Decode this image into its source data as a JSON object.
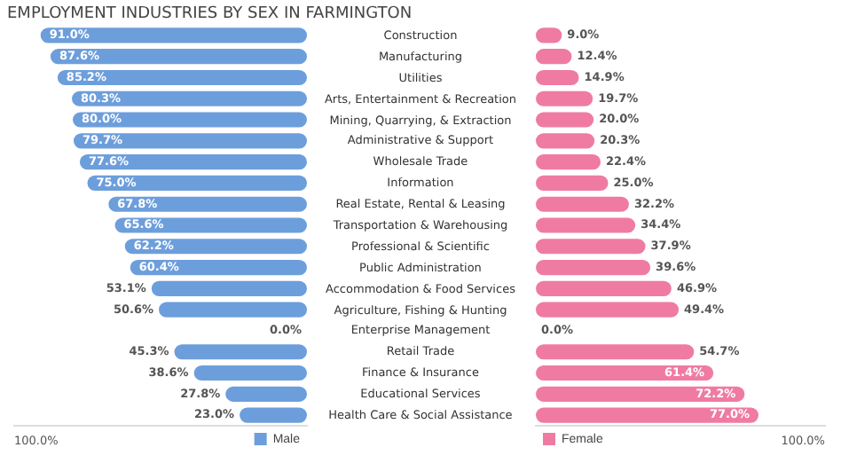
{
  "chart_data": [
    {
      "type": "bar",
      "orientation": "horizontal",
      "title": "EMPLOYMENT INDUSTRIES BY SEX IN FARMINGTON",
      "categories": [
        "Construction",
        "Manufacturing",
        "Utilities",
        "Arts, Entertainment & Recreation",
        "Mining, Quarrying, & Extraction",
        "Administrative & Support",
        "Wholesale Trade",
        "Information",
        "Real Estate, Rental & Leasing",
        "Transportation & Warehousing",
        "Professional & Scientific",
        "Public Administration",
        "Accommodation & Food Services",
        "Agriculture, Fishing & Hunting",
        "Enterprise Management",
        "Retail Trade",
        "Finance & Insurance",
        "Educational Services",
        "Health Care & Social Assistance"
      ],
      "series": [
        {
          "name": "Male",
          "color": "#6d9edc",
          "values": [
            91.0,
            87.6,
            85.2,
            80.3,
            80.0,
            79.7,
            77.6,
            75.0,
            67.8,
            65.6,
            62.2,
            60.4,
            53.1,
            50.6,
            0.0,
            45.3,
            38.6,
            27.8,
            23.0
          ],
          "value_labels": [
            "91.0%",
            "87.6%",
            "85.2%",
            "80.3%",
            "80.0%",
            "79.7%",
            "77.6%",
            "75.0%",
            "67.8%",
            "65.6%",
            "62.2%",
            "60.4%",
            "53.1%",
            "50.6%",
            "0.0%",
            "45.3%",
            "38.6%",
            "27.8%",
            "23.0%"
          ]
        }
      ],
      "xlim": [
        100,
        0
      ],
      "annotations": [
        "100.0%"
      ],
      "legend": "bottom right"
    },
    {
      "type": "bar",
      "orientation": "horizontal",
      "categories": [
        null,
        null,
        null,
        null,
        null,
        null,
        null,
        null,
        null,
        null,
        null,
        null,
        null,
        null,
        null,
        null,
        null,
        null,
        null
      ],
      "series": [
        {
          "name": "Female",
          "color": "#f07ba2",
          "values": [
            9.0,
            12.4,
            14.9,
            19.7,
            20.0,
            20.3,
            22.4,
            25.0,
            32.2,
            34.4,
            37.9,
            39.6,
            46.9,
            49.4,
            0.0,
            54.7,
            61.4,
            72.2,
            77.0
          ],
          "value_labels": [
            "9.0%",
            "12.4%",
            "14.9%",
            "19.7%",
            "20.0%",
            "20.3%",
            "22.4%",
            "25.0%",
            "32.2%",
            "34.4%",
            "37.9%",
            "39.6%",
            "46.9%",
            "49.4%",
            "0.0%",
            "54.7%",
            "61.4%",
            "72.2%",
            "77.0%"
          ]
        }
      ],
      "xlim": [
        0,
        100
      ],
      "annotations": [
        "100.0%"
      ],
      "legend": "bottom left"
    }
  ]
}
